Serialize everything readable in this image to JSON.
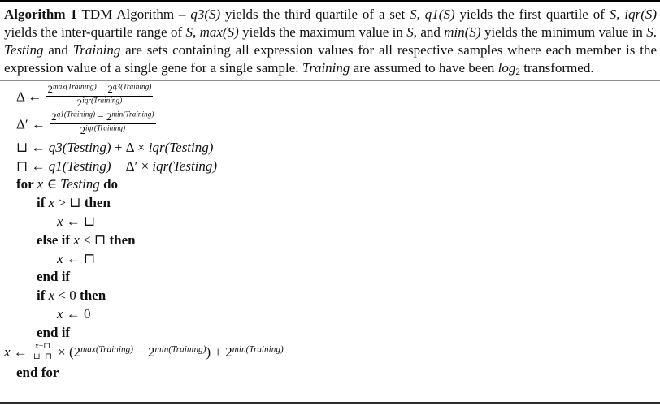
{
  "document": {
    "kind": "algorithm-figure",
    "label": "Algorithm 1",
    "title": "TDM Algorithm"
  },
  "colors": {
    "text": "#111111",
    "top_rule": "#000000",
    "caption_rule": "#8f8f8f",
    "bottom_rule": "#2b2b2b",
    "background": "#ffffff"
  },
  "caption": {
    "tokens": [
      {
        "t": "Algorithm 1",
        "cls": "b"
      },
      {
        "t": " TDM Algorithm – "
      },
      {
        "t": "q3(S)",
        "cls": "i"
      },
      {
        "t": " yields the third quartile of a set "
      },
      {
        "t": "S",
        "cls": "i"
      },
      {
        "t": ", "
      },
      {
        "t": "q1(S)",
        "cls": "i"
      },
      {
        "t": " yields the first quartile of "
      },
      {
        "t": "S",
        "cls": "i"
      },
      {
        "t": ", "
      },
      {
        "t": "iqr(S)",
        "cls": "i"
      },
      {
        "t": " yields the inter-quartile range of "
      },
      {
        "t": "S",
        "cls": "i"
      },
      {
        "t": ", "
      },
      {
        "t": "max(S)",
        "cls": "i"
      },
      {
        "t": " yields the maximum value in "
      },
      {
        "t": "S",
        "cls": "i"
      },
      {
        "t": ", and "
      },
      {
        "t": "min(S)",
        "cls": "i"
      },
      {
        "t": " yields the minimum value in "
      },
      {
        "t": "S",
        "cls": "i"
      },
      {
        "t": ". "
      },
      {
        "t": "Testing",
        "cls": "i"
      },
      {
        "t": " and "
      },
      {
        "t": "Training",
        "cls": "i"
      },
      {
        "t": " are sets containing all expression values for all respective samples where each member is the expression value of a single gene for a single sample. "
      },
      {
        "t": "Training",
        "cls": "i"
      },
      {
        "t": " are assumed to have been "
      },
      {
        "t": "log",
        "cls": "i"
      },
      {
        "t": "2",
        "cls": "sub"
      },
      {
        "t": " transformed."
      }
    ]
  },
  "algorithm": {
    "lines": [
      {
        "indent": 0,
        "tokens": [
          {
            "t": "Δ ← "
          },
          {
            "frac": {
              "num": [
                {
                  "t": "2"
                },
                {
                  "sup": [
                    {
                      "t": "max(Training)",
                      "cls": "i"
                    }
                  ]
                },
                {
                  "t": " − 2"
                },
                {
                  "sup": [
                    {
                      "t": "q3(Training)",
                      "cls": "i"
                    }
                  ]
                }
              ],
              "den": [
                {
                  "t": "2"
                },
                {
                  "sup": [
                    {
                      "t": "iqr(Training)",
                      "cls": "i"
                    }
                  ]
                }
              ]
            }
          }
        ]
      },
      {
        "indent": 0,
        "tokens": [
          {
            "t": "Δ′ ← "
          },
          {
            "frac": {
              "num": [
                {
                  "t": "2"
                },
                {
                  "sup": [
                    {
                      "t": "q1(Training)",
                      "cls": "i"
                    }
                  ]
                },
                {
                  "t": " − 2"
                },
                {
                  "sup": [
                    {
                      "t": "min(Training)",
                      "cls": "i"
                    }
                  ]
                }
              ],
              "den": [
                {
                  "t": "2"
                },
                {
                  "sup": [
                    {
                      "t": "iqr(Training)",
                      "cls": "i"
                    }
                  ]
                }
              ]
            }
          }
        ]
      },
      {
        "indent": 0,
        "tokens": [
          {
            "t": "⊔ ← "
          },
          {
            "t": "q3(Testing)",
            "cls": "i"
          },
          {
            "t": " + Δ × "
          },
          {
            "t": "iqr(Testing)",
            "cls": "i"
          }
        ]
      },
      {
        "indent": 0,
        "tokens": [
          {
            "t": "⊓ ← "
          },
          {
            "t": "q1(Testing)",
            "cls": "i"
          },
          {
            "t": " − Δ′ × "
          },
          {
            "t": "iqr(Testing)",
            "cls": "i"
          }
        ]
      },
      {
        "indent": 0,
        "tokens": [
          {
            "t": "for ",
            "cls": "kw"
          },
          {
            "t": "x",
            "cls": "i"
          },
          {
            "t": " ∈ "
          },
          {
            "t": "Testing",
            "cls": "i"
          },
          {
            "t": " "
          },
          {
            "t": "do",
            "cls": "kw"
          }
        ]
      },
      {
        "indent": 1,
        "tokens": [
          {
            "t": "if ",
            "cls": "kw"
          },
          {
            "t": "x",
            "cls": "i"
          },
          {
            "t": " > ⊔ "
          },
          {
            "t": "then",
            "cls": "kw"
          }
        ]
      },
      {
        "indent": 2,
        "tokens": [
          {
            "t": "x",
            "cls": "i"
          },
          {
            "t": " ← ⊔"
          }
        ]
      },
      {
        "indent": 1,
        "tokens": [
          {
            "t": "else if ",
            "cls": "kw"
          },
          {
            "t": "x",
            "cls": "i"
          },
          {
            "t": " < ⊓ "
          },
          {
            "t": "then",
            "cls": "kw"
          }
        ]
      },
      {
        "indent": 2,
        "tokens": [
          {
            "t": "x",
            "cls": "i"
          },
          {
            "t": " ← ⊓"
          }
        ]
      },
      {
        "indent": 1,
        "tokens": [
          {
            "t": "end if",
            "cls": "kw"
          }
        ]
      },
      {
        "indent": 1,
        "tokens": [
          {
            "t": "if ",
            "cls": "kw"
          },
          {
            "t": "x",
            "cls": "i"
          },
          {
            "t": " < 0 "
          },
          {
            "t": "then",
            "cls": "kw"
          }
        ]
      },
      {
        "indent": 2,
        "tokens": [
          {
            "t": "x",
            "cls": "i"
          },
          {
            "t": " ← 0"
          }
        ]
      },
      {
        "indent": 1,
        "tokens": [
          {
            "t": "end if",
            "cls": "kw"
          }
        ]
      },
      {
        "indent": 0,
        "hang": true,
        "tokens": [
          {
            "t": "x",
            "cls": "i"
          },
          {
            "t": " ← "
          },
          {
            "frac": {
              "num": [
                {
                  "t": "x",
                  "cls": "i"
                },
                {
                  "t": "−⊓"
                }
              ],
              "den": [
                {
                  "t": "⊔−⊓"
                }
              ]
            },
            "cls": "inline"
          },
          {
            "t": " × (2"
          },
          {
            "sup": [
              {
                "t": "max(Training)",
                "cls": "i"
              }
            ]
          },
          {
            "t": " − 2"
          },
          {
            "sup": [
              {
                "t": "min(Training)",
                "cls": "i"
              }
            ]
          },
          {
            "t": ") + 2"
          },
          {
            "sup": [
              {
                "t": "min(Training)",
                "cls": "i"
              }
            ]
          }
        ]
      },
      {
        "indent": 0,
        "tokens": [
          {
            "t": "end for",
            "cls": "kw"
          }
        ]
      }
    ]
  }
}
